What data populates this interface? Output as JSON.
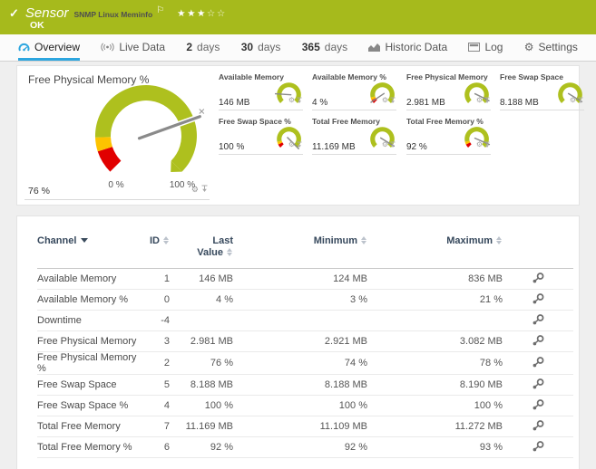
{
  "header": {
    "check_icon": "✓",
    "type_label": "Sensor",
    "title": "SNMP Linux Meminfo",
    "flag_icon": "⚐",
    "stars_filled": "★★★",
    "stars_empty": "☆☆",
    "status": "OK"
  },
  "tabs": {
    "overview": {
      "label": "Overview"
    },
    "live_data": {
      "label": "Live Data"
    },
    "days_2": {
      "num": "2",
      "unit": "days"
    },
    "days_30": {
      "num": "30",
      "unit": "days"
    },
    "days_365": {
      "num": "365",
      "unit": "days"
    },
    "historic": {
      "label": "Historic Data"
    },
    "log": {
      "label": "Log"
    },
    "settings": {
      "label": "Settings"
    }
  },
  "gauges": {
    "main": {
      "title": "Free Physical Memory %",
      "value": "76 %",
      "scale_min": "0 %",
      "scale_max": "100 %",
      "fraction": 0.76,
      "warn": true
    },
    "small": [
      {
        "title": "Available Memory",
        "value": "146 MB",
        "fraction": 0.18,
        "warn": false
      },
      {
        "title": "Available Memory %",
        "value": "4 %",
        "fraction": 0.04,
        "warn": true
      },
      {
        "title": "Free Physical Memory",
        "value": "2.981 MB",
        "fraction": 0.93,
        "warn": false
      },
      {
        "title": "Free Swap Space",
        "value": "8.188 MB",
        "fraction": 0.95,
        "warn": false
      },
      {
        "title": "Free Swap Space %",
        "value": "100 %",
        "fraction": 1.0,
        "warn": true
      },
      {
        "title": "Total Free Memory",
        "value": "11.169 MB",
        "fraction": 0.95,
        "warn": false
      },
      {
        "title": "Total Free Memory %",
        "value": "92 %",
        "fraction": 0.92,
        "warn": true
      }
    ]
  },
  "table": {
    "columns": {
      "channel": "Channel",
      "id": "ID",
      "last_line1": "Last",
      "last_line2": "Value",
      "min": "Minimum",
      "max": "Maximum"
    },
    "rows": [
      {
        "channel": "Available Memory",
        "id": "1",
        "last": "146 MB",
        "min": "124 MB",
        "max": "836 MB"
      },
      {
        "channel": "Available Memory %",
        "id": "0",
        "last": "4 %",
        "min": "3 %",
        "max": "21 %"
      },
      {
        "channel": "Downtime",
        "id": "-4",
        "last": "",
        "min": "",
        "max": ""
      },
      {
        "channel": "Free Physical Memory",
        "id": "3",
        "last": "2.981 MB",
        "min": "2.921 MB",
        "max": "3.082 MB"
      },
      {
        "channel": "Free Physical Memory %",
        "id": "2",
        "last": "76 %",
        "min": "74 %",
        "max": "78 %"
      },
      {
        "channel": "Free Swap Space",
        "id": "5",
        "last": "8.188 MB",
        "min": "8.188 MB",
        "max": "8.190 MB"
      },
      {
        "channel": "Free Swap Space %",
        "id": "4",
        "last": "100 %",
        "min": "100 %",
        "max": "100 %"
      },
      {
        "channel": "Total Free Memory",
        "id": "7",
        "last": "11.169 MB",
        "min": "11.109 MB",
        "max": "11.272 MB"
      },
      {
        "channel": "Total Free Memory %",
        "id": "6",
        "last": "92 %",
        "min": "92 %",
        "max": "93 %"
      }
    ]
  },
  "colors": {
    "status_green": "#a6ba1c",
    "gauge_green": "#aec01e",
    "gauge_yellow": "#fdc300",
    "gauge_red": "#e10000",
    "accent_blue": "#2da6df",
    "header_text_navy": "#36485c",
    "needle_grey": "#8a8a8a"
  }
}
